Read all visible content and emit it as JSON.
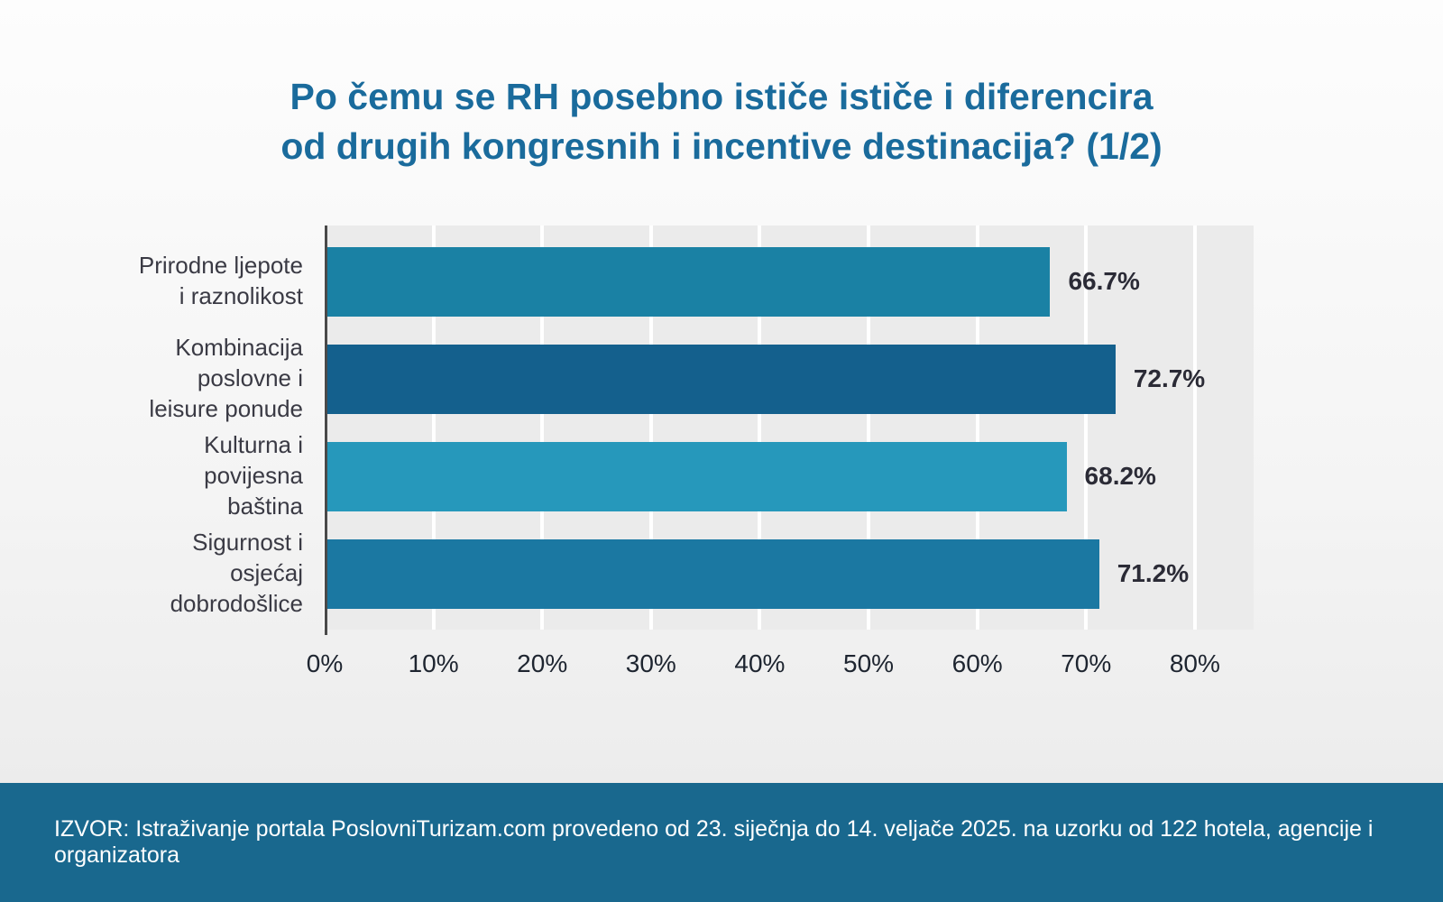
{
  "title": {
    "line1": "Po čemu se RH posebno ističe ističe i diferencira",
    "line2": "od drugih kongresnih i incentive destinacija? (1/2)"
  },
  "chart_data": {
    "type": "bar",
    "orientation": "horizontal",
    "title": "Po čemu se RH posebno ističe ističe i diferencira od drugih kongresnih i incentive destinacija? (1/2)",
    "categories": [
      "Prirodne ljepote i raznolikost",
      "Kombinacija poslovne i leisure ponude",
      "Kulturna i povijesna baština",
      "Sigurnost i osjećaj dobrodošlice"
    ],
    "values": [
      66.7,
      72.7,
      68.2,
      71.2
    ],
    "value_labels": [
      "66.7%",
      "72.7%",
      "68.2%",
      "71.2%"
    ],
    "bar_colors": [
      "#1a81a4",
      "#14608d",
      "#2698bb",
      "#1b78a2"
    ],
    "xlim": [
      0,
      80
    ],
    "x_axis_max_extent": 85.4,
    "x_ticks": [
      0,
      10,
      20,
      30,
      40,
      50,
      60,
      70,
      80
    ],
    "x_tick_labels": [
      "0%",
      "10%",
      "20%",
      "30%",
      "40%",
      "50%",
      "60%",
      "70%",
      "80%"
    ],
    "grid": true,
    "legend": false,
    "xlabel": "",
    "ylabel": ""
  },
  "footer": {
    "source": "IZVOR: Istraživanje portala PoslovniTurizam.com provedeno od 23. siječnja do 14. veljače 2025. na uzorku od 122 hotela, agencije i organizatora"
  },
  "colors": {
    "title": "#1a6b9c",
    "footer_bg": "#19688e",
    "footer_text": "#ffffff",
    "plot_bg": "#ebebeb",
    "gridline": "#ffffff",
    "axis_line": "#4a4a4a",
    "value_label": "#2b2b36",
    "category_label": "#3a3a44"
  }
}
